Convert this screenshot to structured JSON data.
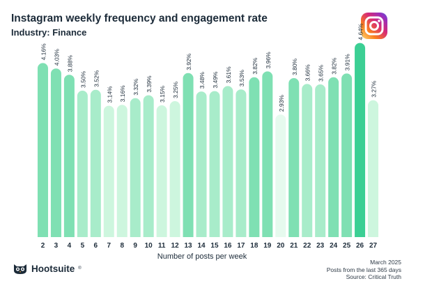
{
  "header": {
    "title": "Instagram weekly frequency and engagement rate",
    "subtitle": "Industry: Finance"
  },
  "icons": {
    "platform": "instagram-icon",
    "brand": "owl-logo-icon"
  },
  "colors": {
    "bar_peak": "#3ccf94",
    "bar_high": "#7fe0b3",
    "bar_mid": "#a8ecca",
    "bar_low": "#cdf6de",
    "bar_lowest": "#e6faee",
    "text": "#1c2b39",
    "ig_gradient": [
      "#feda75",
      "#fa7e1e",
      "#d62976",
      "#962fbf",
      "#4f5bd5"
    ]
  },
  "chart_data": {
    "type": "bar",
    "title": "Instagram weekly frequency and engagement rate",
    "subtitle": "Industry: Finance",
    "xlabel": "Number of posts per week",
    "ylabel": "",
    "categories": [
      "2",
      "3",
      "4",
      "5",
      "6",
      "7",
      "8",
      "9",
      "10",
      "11",
      "12",
      "13",
      "14",
      "15",
      "16",
      "17",
      "18",
      "19",
      "20",
      "21",
      "22",
      "23",
      "24",
      "25",
      "26",
      "27"
    ],
    "values": [
      4.16,
      4.03,
      3.88,
      3.5,
      3.52,
      3.14,
      3.16,
      3.32,
      3.39,
      3.15,
      3.25,
      3.92,
      3.48,
      3.49,
      3.61,
      3.53,
      3.82,
      3.96,
      2.93,
      3.8,
      3.66,
      3.65,
      3.82,
      3.91,
      4.64,
      3.27
    ],
    "value_labels": [
      "4.16%",
      "4.03%",
      "3.88%",
      "3.50%",
      "3.52%",
      "3.14%",
      "3.16%",
      "3.32%",
      "3.39%",
      "3.15%",
      "3.25%",
      "3.92%",
      "3.48%",
      "3.49%",
      "3.61%",
      "3.53%",
      "3.82%",
      "3.96%",
      "2.93%",
      "3.80%",
      "3.66%",
      "3.65%",
      "3.82%",
      "3.91%",
      "4.64%",
      "3.27%"
    ],
    "ylim": [
      0,
      4.8
    ],
    "grid": false,
    "legend": "none"
  },
  "footer": {
    "brand": "Hootsuite",
    "brand_mark": "®",
    "date": "March 2025",
    "period": "Posts from the last 365 days",
    "source": "Source: Critical Truth"
  }
}
